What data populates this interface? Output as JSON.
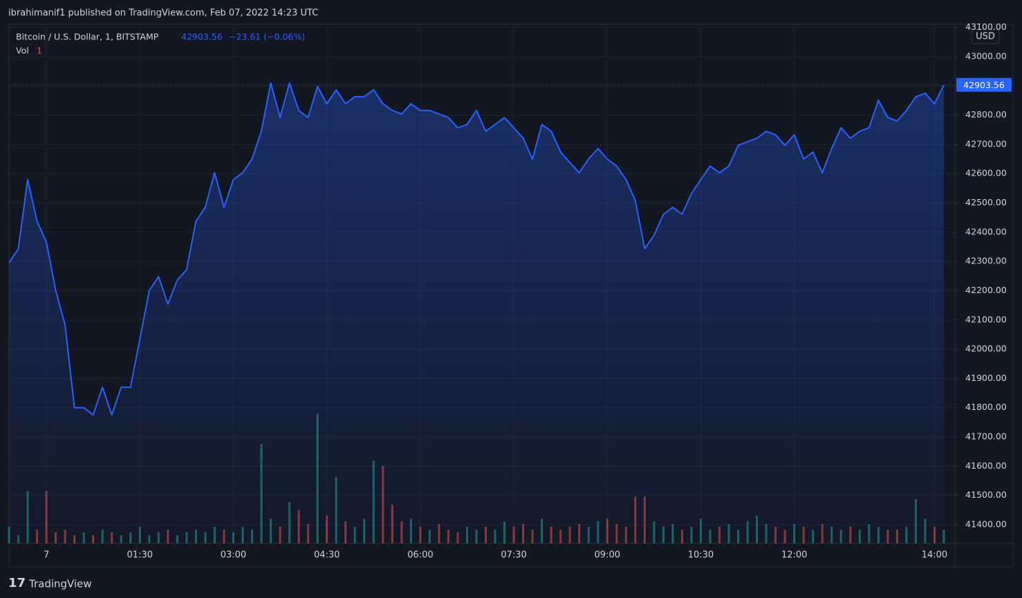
{
  "publisher": "ibrahimanif1 published on TradingView.com, Feb 07, 2022 14:23 UTC",
  "logo": "TradingView",
  "chart_data": {
    "type": "area",
    "title": "Bitcoin / U.S. Dollar, 1, BITSTAMP",
    "change_label": "−23.61 (−0.06%)",
    "currency": "USD",
    "grid": true,
    "categories": [
      null,
      null,
      null,
      null,
      "7",
      null,
      null,
      null,
      null,
      null,
      null,
      null,
      null,
      null,
      "01:30",
      null,
      null,
      null,
      null,
      null,
      null,
      null,
      null,
      null,
      "03:00",
      null,
      null,
      null,
      null,
      null,
      null,
      null,
      null,
      null,
      "04:30",
      null,
      null,
      null,
      null,
      null,
      null,
      null,
      null,
      null,
      "06:00",
      null,
      null,
      null,
      null,
      null,
      null,
      null,
      null,
      null,
      "07:30",
      null,
      null,
      null,
      null,
      null,
      null,
      null,
      null,
      null,
      "09:00",
      null,
      null,
      null,
      null,
      null,
      null,
      null,
      null,
      null,
      "10:30",
      null,
      null,
      null,
      null,
      null,
      null,
      null,
      null,
      null,
      "12:00",
      null,
      null,
      null,
      null,
      null,
      null,
      null,
      null,
      null,
      null,
      null,
      null,
      null,
      null,
      "14:00",
      null
    ],
    "series": [
      {
        "name": "Bitcoin / U.S. Dollar",
        "color": "#2962ff",
        "values": [
          42295,
          42343,
          42580,
          42437,
          42366,
          42200,
          42083,
          41800,
          41800,
          41775,
          41870,
          41775,
          41870,
          41870,
          42035,
          42200,
          42248,
          42154,
          42236,
          42272,
          42437,
          42485,
          42603,
          42485,
          42580,
          42603,
          42650,
          42745,
          42910,
          42792,
          42910,
          42816,
          42792,
          42898,
          42839,
          42887,
          42839,
          42863,
          42863,
          42887,
          42839,
          42816,
          42804,
          42839,
          42816,
          42816,
          42804,
          42792,
          42757,
          42768,
          42816,
          42745,
          42768,
          42792,
          42757,
          42721,
          42650,
          42768,
          42745,
          42674,
          42638,
          42603,
          42650,
          42686,
          42650,
          42626,
          42580,
          42508,
          42343,
          42390,
          42461,
          42485,
          42461,
          42532,
          42580,
          42626,
          42603,
          42626,
          42697,
          42709,
          42721,
          42745,
          42733,
          42697,
          42733,
          42650,
          42674,
          42603,
          42686,
          42757,
          42721,
          42745,
          42757,
          42851,
          42792,
          42780,
          42816,
          42863,
          42875,
          42839,
          42903.56
        ]
      },
      {
        "name": "Vol",
        "axis": "y2",
        "up_color": "rgba(38,166,154,0.55)",
        "down_color": "rgba(239,83,80,0.55)",
        "values": [
          6,
          3,
          19,
          5,
          19,
          4,
          5,
          3,
          4,
          3,
          5,
          4,
          3,
          4,
          6,
          3,
          4,
          5,
          3,
          4,
          5,
          4,
          6,
          5,
          4,
          6,
          5,
          36,
          9,
          6,
          15,
          12,
          7,
          47,
          10,
          24,
          8,
          6,
          9,
          30,
          28,
          14,
          8,
          9,
          6,
          5,
          7,
          5,
          4,
          6,
          5,
          6,
          5,
          8,
          6,
          7,
          5,
          9,
          6,
          5,
          6,
          7,
          6,
          8,
          9,
          7,
          6,
          17,
          17,
          8,
          6,
          7,
          5,
          6,
          9,
          5,
          6,
          7,
          5,
          8,
          10,
          7,
          6,
          5,
          7,
          6,
          5,
          7,
          6,
          5,
          6,
          5,
          7,
          6,
          5,
          5,
          6,
          16,
          9,
          6,
          5
        ]
      }
    ],
    "vol_value": "1",
    "ylim": [
      41336,
      43111
    ],
    "yticks": [
      {
        "value": 41400,
        "label": "41400.00"
      },
      {
        "value": 41500,
        "label": "41500.00"
      },
      {
        "value": 41600,
        "label": "41600.00"
      },
      {
        "value": 41700,
        "label": "41700.00"
      },
      {
        "value": 41800,
        "label": "41800.00"
      },
      {
        "value": 41900,
        "label": "41900.00"
      },
      {
        "value": 42000,
        "label": "42000.00"
      },
      {
        "value": 42100,
        "label": "42100.00"
      },
      {
        "value": 42200,
        "label": "42200.00"
      },
      {
        "value": 42300,
        "label": "42300.00"
      },
      {
        "value": 42400,
        "label": "42400.00"
      },
      {
        "value": 42500,
        "label": "42500.00"
      },
      {
        "value": 42600,
        "label": "42600.00"
      },
      {
        "value": 42700,
        "label": "42700.00"
      },
      {
        "value": 42800,
        "label": "42800.00"
      },
      {
        "value": 42900,
        "label": "42900.00"
      },
      {
        "value": 43000,
        "label": "43000.00"
      },
      {
        "value": 43100,
        "label": "43100.00"
      }
    ],
    "y2lim": [
      0,
      188
    ]
  }
}
